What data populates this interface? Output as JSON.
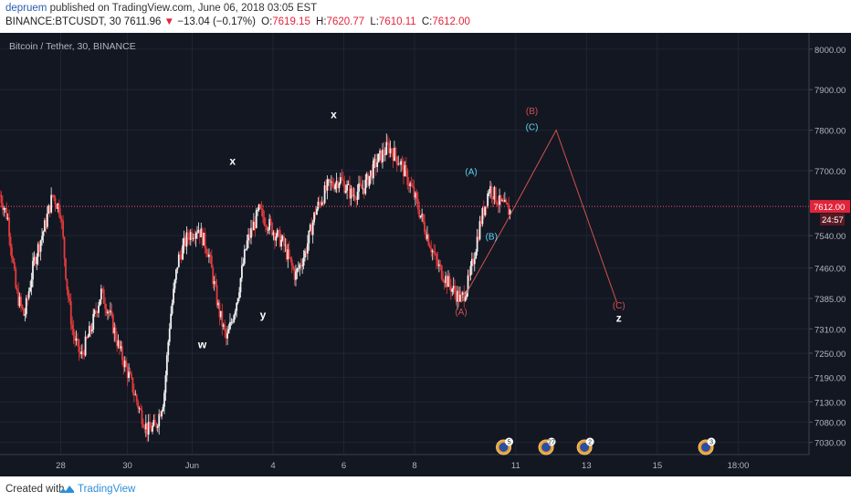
{
  "header": {
    "author": "depruem",
    "published_text": " published on TradingView.com, June 06, 2018 03:05 EST",
    "symbol": "BINANCE:BTCUSDT, 30",
    "last": "7611.96",
    "change_arrow": "▼",
    "change": "−13.04 (−0.17%)",
    "o_label": "O:",
    "o_value": "7619.15",
    "h_label": "H:",
    "h_value": "7620.77",
    "l_label": "L:",
    "l_value": "7610.11",
    "c_label": "C:",
    "c_value": "7612.00"
  },
  "footer": {
    "created_with": "Created with",
    "brand": "TradingView"
  },
  "colors": {
    "background": "#131722",
    "grid": "#1f2533",
    "up": "#f2f2f2",
    "down": "#e33b3b",
    "price_line": "#f0506e",
    "price_tag": "#e0253b",
    "wave_red": "#d1514f",
    "wave_cyan": "#5dd7f0",
    "wave_white": "#ffffff",
    "axis_text": "#b2b5be"
  },
  "chart_data": {
    "type": "candlestick",
    "title": "Bitcoin / Tether, 30, BINANCE",
    "x_ticks": [
      "28",
      "30",
      "Jun",
      "4",
      "6",
      "8",
      "11",
      "13",
      "15",
      "18:00"
    ],
    "y_ticks": [
      8000.0,
      7900.0,
      7800.0,
      7700.0,
      7540.0,
      7460.0,
      7385.0,
      7310.0,
      7250.0,
      7190.0,
      7130.0,
      7080.0,
      7030.0
    ],
    "y_tick_labels": [
      "8000.00",
      "7900.00",
      "7800.00",
      "7700.00",
      "7540.00",
      "7460.00",
      "7385.00",
      "7310.00",
      "7250.00",
      "7190.00",
      "7130.00",
      "7080.00",
      "7030.00"
    ],
    "ylim": [
      7000,
      8040
    ],
    "grid": true,
    "current_price": "7612.00",
    "countdown": "24:57",
    "price_path": [
      [
        0,
        7640
      ],
      [
        0.4,
        7580
      ],
      [
        0.8,
        7400
      ],
      [
        1.2,
        7340
      ],
      [
        1.7,
        7480
      ],
      [
        2.2,
        7560
      ],
      [
        2.6,
        7640
      ],
      [
        3.0,
        7600
      ],
      [
        3.3,
        7420
      ],
      [
        3.6,
        7300
      ],
      [
        4.0,
        7240
      ],
      [
        4.5,
        7310
      ],
      [
        5.0,
        7400
      ],
      [
        5.4,
        7350
      ],
      [
        5.9,
        7260
      ],
      [
        6.4,
        7190
      ],
      [
        6.9,
        7110
      ],
      [
        7.3,
        7060
      ],
      [
        7.7,
        7070
      ],
      [
        8.1,
        7140
      ],
      [
        8.4,
        7330
      ],
      [
        8.8,
        7480
      ],
      [
        9.3,
        7540
      ],
      [
        9.8,
        7560
      ],
      [
        10.3,
        7500
      ],
      [
        10.8,
        7360
      ],
      [
        11.2,
        7280
      ],
      [
        11.7,
        7380
      ],
      [
        12.2,
        7520
      ],
      [
        12.8,
        7600
      ],
      [
        13.4,
        7560
      ],
      [
        14.0,
        7520
      ],
      [
        14.6,
        7440
      ],
      [
        15.1,
        7500
      ],
      [
        15.6,
        7600
      ],
      [
        16.2,
        7660
      ],
      [
        16.8,
        7680
      ],
      [
        17.4,
        7640
      ],
      [
        18.0,
        7660
      ],
      [
        18.6,
        7720
      ],
      [
        19.2,
        7760
      ],
      [
        19.8,
        7720
      ],
      [
        20.4,
        7650
      ],
      [
        21.0,
        7560
      ],
      [
        21.6,
        7470
      ],
      [
        22.2,
        7420
      ],
      [
        22.8,
        7380
      ],
      [
        23.2,
        7430
      ],
      [
        23.7,
        7560
      ],
      [
        24.2,
        7660
      ],
      [
        24.7,
        7620
      ],
      [
        25.2,
        7600
      ]
    ],
    "x_tick_positions": [
      3.0,
      6.3,
      9.5,
      13.5,
      17.0,
      20.5,
      25.5,
      29.0,
      32.5,
      36.5
    ],
    "x_max": 40,
    "wave_projection": [
      {
        "x": 22.8,
        "y": 7375
      },
      {
        "x": 25.0,
        "y": 7570
      },
      {
        "x": 27.5,
        "y": 7800
      },
      {
        "x": 30.5,
        "y": 7375
      }
    ],
    "wave_labels": [
      {
        "text": "w",
        "x": 10.0,
        "y": 7262,
        "color": "white"
      },
      {
        "text": "x",
        "x": 11.5,
        "y": 7715,
        "color": "white"
      },
      {
        "text": "y",
        "x": 13.0,
        "y": 7335,
        "color": "white"
      },
      {
        "text": "x",
        "x": 16.5,
        "y": 7830,
        "color": "white"
      },
      {
        "text": "z",
        "x": 30.6,
        "y": 7328,
        "color": "white"
      },
      {
        "text": "(A)",
        "x": 22.8,
        "y": 7344,
        "color": "red"
      },
      {
        "text": "(A)",
        "x": 23.3,
        "y": 7690,
        "color": "cyan"
      },
      {
        "text": "(B)",
        "x": 24.3,
        "y": 7530,
        "color": "cyan"
      },
      {
        "text": "(B)",
        "x": 26.3,
        "y": 7840,
        "color": "red"
      },
      {
        "text": "(C)",
        "x": 26.3,
        "y": 7800,
        "color": "cyan"
      },
      {
        "text": "(C)",
        "x": 30.6,
        "y": 7360,
        "color": "red"
      }
    ],
    "event_markers": [
      {
        "x": 24.9,
        "badge": "5"
      },
      {
        "x": 27.0,
        "badge": "27"
      },
      {
        "x": 28.9,
        "badge": "2"
      },
      {
        "x": 34.9,
        "badge": "3"
      }
    ]
  }
}
